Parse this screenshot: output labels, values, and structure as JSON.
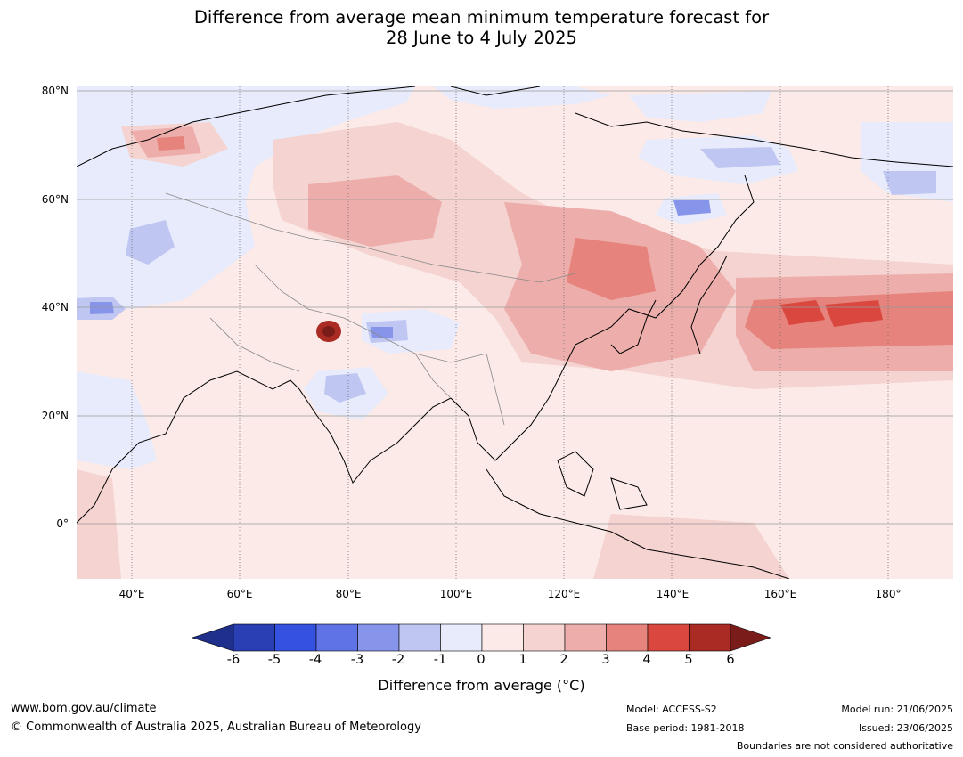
{
  "title": {
    "line1": "Difference from average mean minimum temperature forecast for",
    "line2": "28 June to 4 July 2025"
  },
  "map": {
    "lat_labels": [
      "80°N",
      "60°N",
      "40°N",
      "20°N",
      "0°"
    ],
    "lon_labels": [
      "40°E",
      "60°E",
      "80°E",
      "100°E",
      "120°E",
      "140°E",
      "160°E",
      "180°"
    ]
  },
  "colorbar": {
    "ticks": [
      "-6",
      "-5",
      "-4",
      "-3",
      "-2",
      "-1",
      "0",
      "1",
      "2",
      "3",
      "4",
      "5",
      "6"
    ],
    "colors": [
      "#1f2f8c",
      "#2b3fb4",
      "#3551e0",
      "#5f73e6",
      "#8695ea",
      "#bfc6f2",
      "#e8ebfb",
      "#fbeae8",
      "#f4d3d1",
      "#edaeab",
      "#e5837c",
      "#d9473f",
      "#aa2a24",
      "#7a1c1a"
    ],
    "label": "Difference from average (°C)"
  },
  "footer": {
    "website": "www.bom.gov.au/climate",
    "copyright": "© Commonwealth of Australia 2025, Australian Bureau of Meteorology",
    "model": "Model: ACCESS-S2",
    "base_period": "Base period: 1981-2018",
    "model_run": "Model run: 21/06/2025",
    "issued": "Issued: 23/06/2025",
    "disclaimer": "Boundaries are not considered authoritative"
  }
}
